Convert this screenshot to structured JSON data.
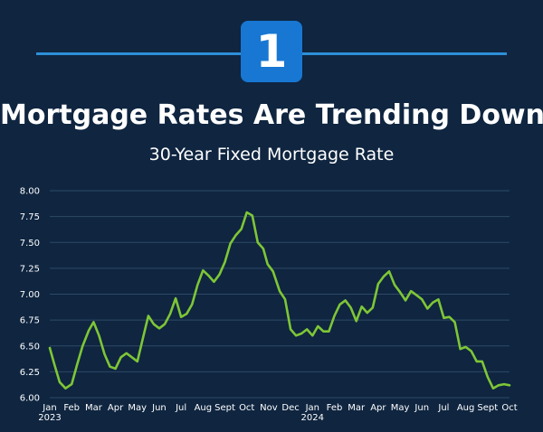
{
  "badge": {
    "number": "1"
  },
  "header": {
    "title": "Mortgage Rates Are Trending Down",
    "subtitle": "30-Year Fixed Mortgage Rate"
  },
  "colors": {
    "background": "#0f2540",
    "accent": "#1877d2",
    "rule": "#2e8fd8",
    "line": "#7ec636",
    "grid": "#2e4a66"
  },
  "chart_data": {
    "type": "line",
    "title": "30-Year Fixed Mortgage Rate",
    "xlabel": "",
    "ylabel": "",
    "ylim": [
      6.0,
      8.0
    ],
    "grid": true,
    "y_ticks": [
      "8.00",
      "7.75",
      "7.50",
      "7.25",
      "7.00",
      "6.75",
      "6.50",
      "6.25",
      "6.00"
    ],
    "x_ticks": [
      {
        "label": "Jan",
        "sub": "2023",
        "x": 0
      },
      {
        "label": "Feb",
        "sub": "",
        "x": 1
      },
      {
        "label": "Mar",
        "sub": "",
        "x": 2
      },
      {
        "label": "Apr",
        "sub": "",
        "x": 3
      },
      {
        "label": "May",
        "sub": "",
        "x": 4
      },
      {
        "label": "Jun",
        "sub": "",
        "x": 5
      },
      {
        "label": "Jul",
        "sub": "",
        "x": 6
      },
      {
        "label": "Aug",
        "sub": "",
        "x": 7
      },
      {
        "label": "Sept",
        "sub": "",
        "x": 8
      },
      {
        "label": "Oct",
        "sub": "",
        "x": 9
      },
      {
        "label": "Nov",
        "sub": "",
        "x": 10
      },
      {
        "label": "Dec",
        "sub": "",
        "x": 11
      },
      {
        "label": "Jan",
        "sub": "2024",
        "x": 12
      },
      {
        "label": "Feb",
        "sub": "",
        "x": 13
      },
      {
        "label": "Mar",
        "sub": "",
        "x": 14
      },
      {
        "label": "Apr",
        "sub": "",
        "x": 15
      },
      {
        "label": "May",
        "sub": "",
        "x": 16
      },
      {
        "label": "Jun",
        "sub": "",
        "x": 17
      },
      {
        "label": "Jul",
        "sub": "",
        "x": 18
      },
      {
        "label": "Aug",
        "sub": "",
        "x": 19
      },
      {
        "label": "Sept",
        "sub": "",
        "x": 20
      },
      {
        "label": "Oct",
        "sub": "",
        "x": 21
      }
    ],
    "xlim": [
      0,
      21
    ],
    "series": [
      {
        "x": [
          0,
          0.2,
          0.45,
          0.72,
          1.0,
          1.25,
          1.5,
          1.78,
          2.0,
          2.25,
          2.5,
          2.75,
          3.0,
          3.25,
          3.5,
          3.75,
          4.0,
          4.25,
          4.5,
          4.75,
          5.0,
          5.25,
          5.5,
          5.75,
          6.0,
          6.25,
          6.5,
          6.75,
          7.0,
          7.25,
          7.5,
          7.75,
          8.0,
          8.25,
          8.5,
          8.75,
          9.0,
          9.25,
          9.5,
          9.75,
          9.95,
          10.2,
          10.5,
          10.75,
          11.0,
          11.25,
          11.5,
          11.75,
          12.0,
          12.25,
          12.5,
          12.75,
          13.0,
          13.25,
          13.5,
          13.75,
          14.0,
          14.25,
          14.5,
          14.75,
          15.0,
          15.25,
          15.5,
          15.75,
          16.0,
          16.25,
          16.5,
          16.75,
          17.0,
          17.25,
          17.5,
          17.75,
          18.0,
          18.25,
          18.5,
          18.75,
          19.0,
          19.25,
          19.5,
          19.75,
          20.0,
          20.25,
          20.5,
          20.75,
          21.0
        ],
        "y": [
          6.48,
          6.33,
          6.15,
          6.09,
          6.13,
          6.32,
          6.5,
          6.65,
          6.73,
          6.6,
          6.42,
          6.3,
          6.28,
          6.39,
          6.43,
          6.39,
          6.35,
          6.57,
          6.79,
          6.71,
          6.67,
          6.71,
          6.81,
          6.96,
          6.78,
          6.81,
          6.9,
          7.09,
          7.23,
          7.18,
          7.12,
          7.19,
          7.31,
          7.49,
          7.57,
          7.63,
          7.79,
          7.76,
          7.5,
          7.44,
          7.29,
          7.22,
          7.03,
          6.95,
          6.66,
          6.6,
          6.62,
          6.66,
          6.6,
          6.69,
          6.64,
          6.64,
          6.79,
          6.9,
          6.94,
          6.87,
          6.74,
          6.88,
          6.82,
          6.87,
          7.1,
          7.17,
          7.22,
          7.09,
          7.02,
          6.94,
          7.03,
          6.99,
          6.95,
          6.86,
          6.92,
          6.95,
          6.77,
          6.78,
          6.73,
          6.47,
          6.49,
          6.45,
          6.35,
          6.35,
          6.2,
          6.09,
          6.12,
          6.13,
          6.12
        ]
      }
    ]
  }
}
